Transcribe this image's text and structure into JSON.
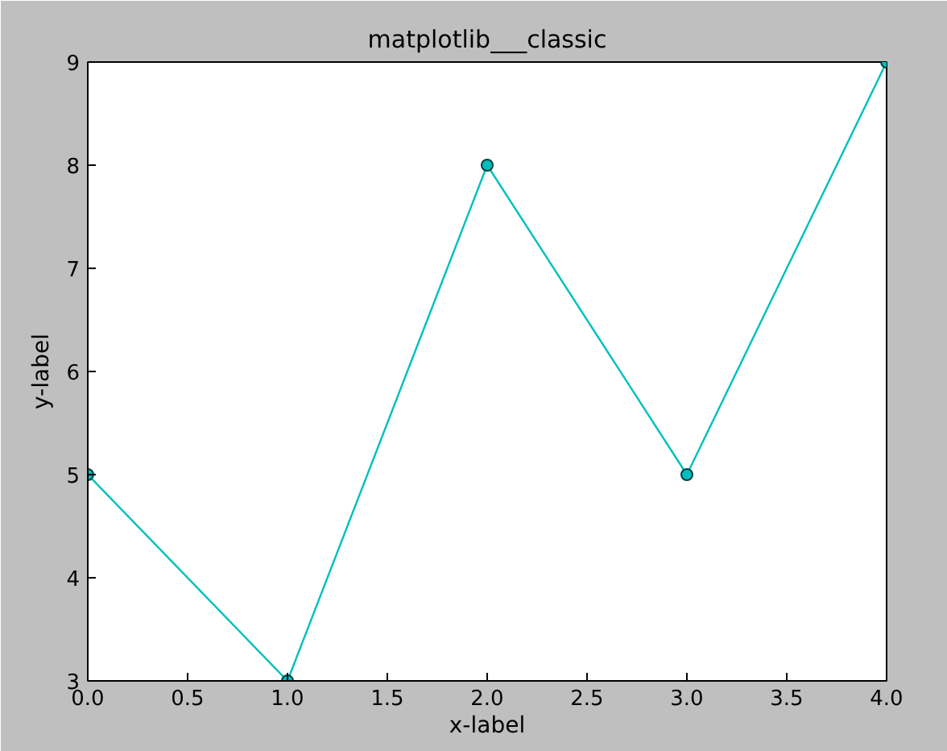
{
  "chart_data": {
    "type": "line",
    "title": "matplotlib___classic",
    "xlabel": "x-label",
    "ylabel": "y-label",
    "x": [
      0,
      1,
      2,
      3,
      4
    ],
    "series": [
      {
        "color": "#00bfbf",
        "values": [
          5,
          3,
          8,
          5,
          9
        ]
      }
    ],
    "xlim": [
      0,
      4
    ],
    "ylim": [
      3,
      9
    ],
    "xticks": [
      {
        "value": 0,
        "label": "0.0"
      },
      {
        "value": 0.5,
        "label": "0.5"
      },
      {
        "value": 1,
        "label": "1.0"
      },
      {
        "value": 1.5,
        "label": "1.5"
      },
      {
        "value": 2,
        "label": "2.0"
      },
      {
        "value": 2.5,
        "label": "2.5"
      },
      {
        "value": 3,
        "label": "3.0"
      },
      {
        "value": 3.5,
        "label": "3.5"
      },
      {
        "value": 4,
        "label": "4.0"
      }
    ],
    "yticks": [
      3,
      4,
      5,
      6,
      7,
      8,
      9
    ],
    "marker": "circle",
    "line_style": "solid",
    "grid": false
  }
}
